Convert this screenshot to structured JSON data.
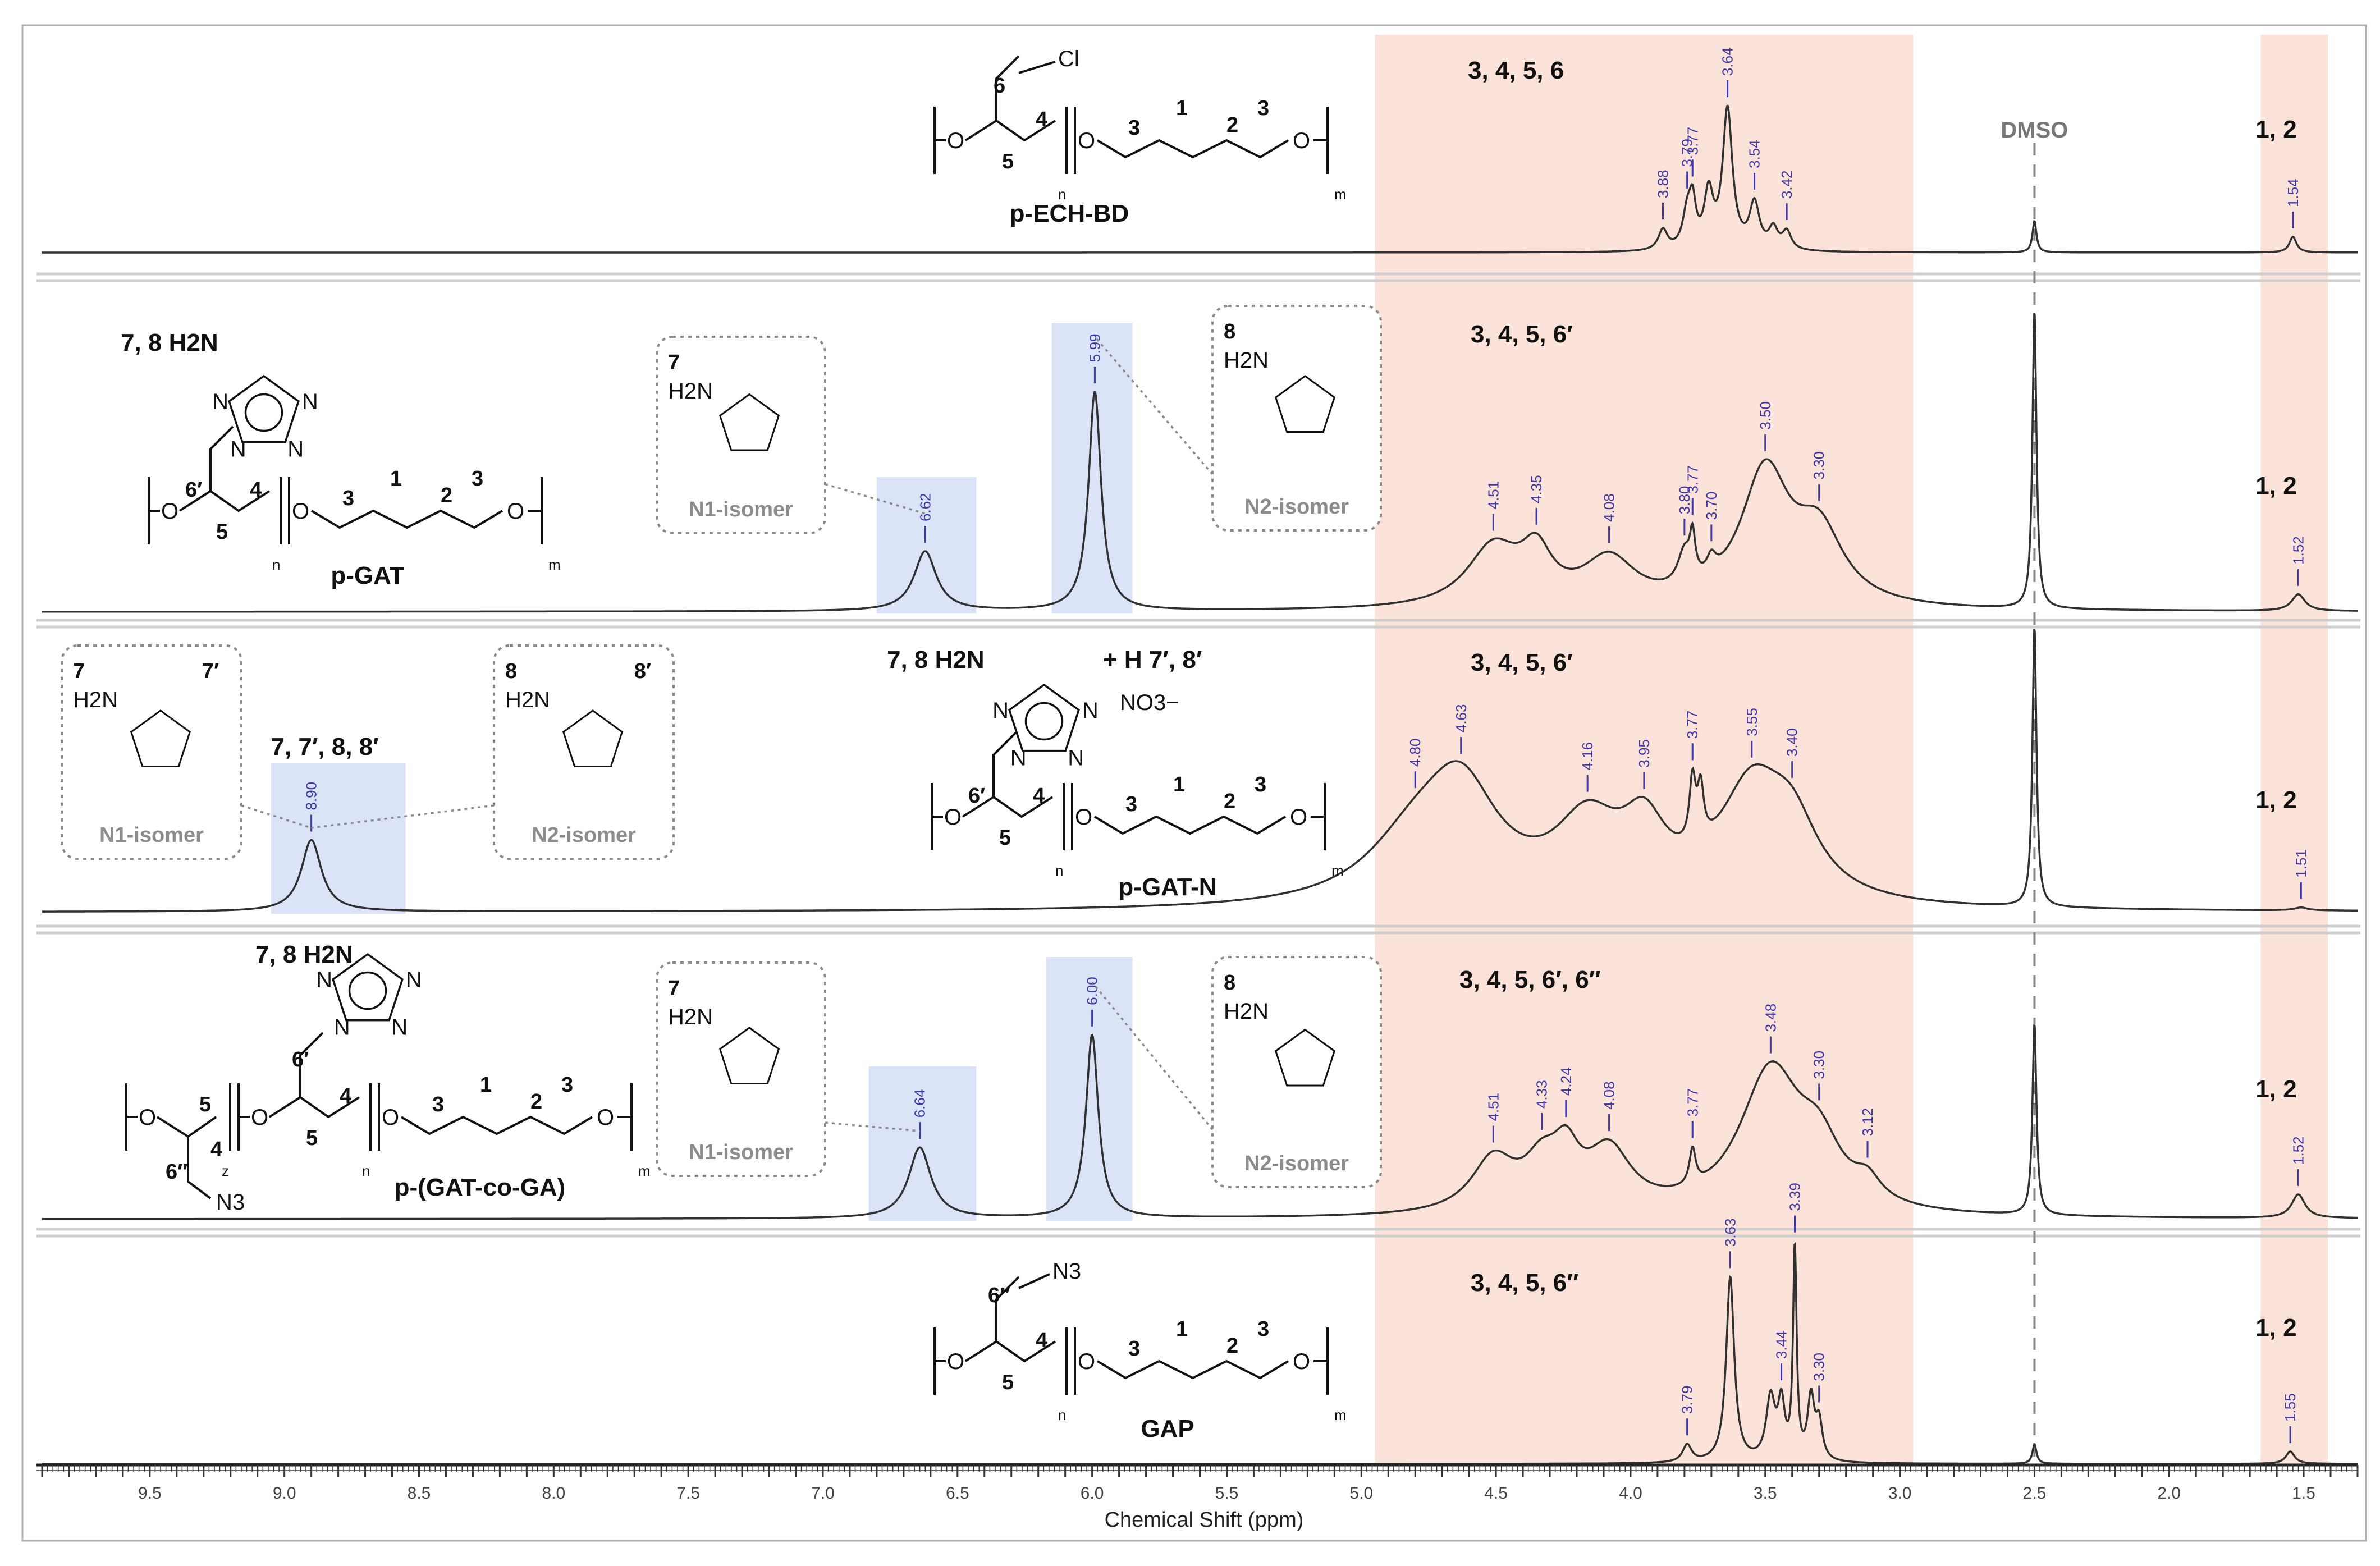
{
  "chart_data": {
    "type": "line",
    "title": "",
    "xlabel": "Chemical Shift (ppm)",
    "ylabel": "",
    "xlim": [
      9.9,
      1.3
    ],
    "reversed_x_axis": true,
    "x_ticks": [
      "9.5",
      "9.0",
      "8.5",
      "8.0",
      "7.5",
      "7.0",
      "6.5",
      "6.0",
      "5.5",
      "5.0",
      "4.5",
      "4.0",
      "3.5",
      "3.0",
      "2.5",
      "2.0",
      "1.5"
    ],
    "highlight_regions": [
      {
        "from": 4.95,
        "to": 2.95,
        "color": "#fbe3d9",
        "note": "aliphatic backbone region"
      },
      {
        "from": 1.66,
        "to": 1.41,
        "color": "#fbe3d9",
        "note": "protons 1, 2"
      }
    ],
    "solvent_marker": {
      "label": "DMSO",
      "ppm": 2.5
    },
    "series": [
      {
        "name": "p-ECH-BD",
        "baseline_level": 0.0,
        "peaks": [
          {
            "ppm": 3.88,
            "h": 0.09,
            "w": 0.02
          },
          {
            "ppm": 3.79,
            "h": 0.15,
            "w": 0.02
          },
          {
            "ppm": 3.77,
            "h": 0.18,
            "w": 0.015
          },
          {
            "ppm": 3.71,
            "h": 0.24,
            "w": 0.02
          },
          {
            "ppm": 3.64,
            "h": 0.62,
            "w": 0.022
          },
          {
            "ppm": 3.54,
            "h": 0.2,
            "w": 0.022
          },
          {
            "ppm": 3.47,
            "h": 0.09,
            "w": 0.02
          },
          {
            "ppm": 3.42,
            "h": 0.08,
            "w": 0.02
          },
          {
            "ppm": 2.5,
            "h": 0.14,
            "w": 0.009
          },
          {
            "ppm": 1.54,
            "h": 0.07,
            "w": 0.016
          }
        ],
        "labels": [
          "3.88",
          "3.79",
          "3.77",
          "3.64",
          "3.54",
          "3.42",
          "1.54"
        ],
        "region_labels": [
          "3, 4, 5, 6",
          "DMSO",
          "1, 2"
        ],
        "structure": {
          "name": "p-ECH-BD",
          "atoms": [
            "6",
            "4",
            "5",
            "3",
            "1",
            "2",
            "3",
            "n",
            "m",
            "Cl",
            "O",
            "O",
            "O"
          ]
        }
      },
      {
        "name": "p-GAT",
        "baseline_level": 0.0,
        "peaks": [
          {
            "ppm": 6.62,
            "h": 0.18,
            "w": 0.05
          },
          {
            "ppm": 5.99,
            "h": 0.66,
            "w": 0.028
          },
          {
            "ppm": 4.51,
            "h": 0.18,
            "w": 0.12
          },
          {
            "ppm": 4.35,
            "h": 0.14,
            "w": 0.07
          },
          {
            "ppm": 4.08,
            "h": 0.14,
            "w": 0.12
          },
          {
            "ppm": 3.8,
            "h": 0.1,
            "w": 0.03
          },
          {
            "ppm": 3.77,
            "h": 0.12,
            "w": 0.012
          },
          {
            "ppm": 3.7,
            "h": 0.05,
            "w": 0.02
          },
          {
            "ppm": 3.5,
            "h": 0.4,
            "w": 0.11
          },
          {
            "ppm": 3.3,
            "h": 0.21,
            "w": 0.11
          },
          {
            "ppm": 2.5,
            "h": 0.9,
            "w": 0.009
          },
          {
            "ppm": 1.52,
            "h": 0.05,
            "w": 0.03
          }
        ],
        "labels": [
          "6.62",
          "5.99",
          "4.51",
          "4.35",
          "4.08",
          "3.80",
          "3.77",
          "3.70",
          "3.50",
          "3.30",
          "1.52"
        ],
        "region_labels": [
          "3, 4, 5, 6′",
          "1, 2"
        ],
        "structure": {
          "name": "p-GAT",
          "prefix": "7, 8",
          "atoms": [
            "6′",
            "5",
            "4",
            "3",
            "1",
            "3",
            "n",
            "m",
            "O",
            "O",
            "O"
          ]
        },
        "isomer_insets": [
          {
            "number": "7",
            "label": "N1-isomer"
          },
          {
            "number": "8",
            "label": "N2-isomer"
          }
        ]
      },
      {
        "name": "p-GAT-N",
        "baseline_level": 0.0,
        "peaks": [
          {
            "ppm": 8.9,
            "h": 0.25,
            "w": 0.045
          },
          {
            "ppm": 4.8,
            "h": 0.2,
            "w": 0.22
          },
          {
            "ppm": 4.63,
            "h": 0.36,
            "w": 0.17
          },
          {
            "ppm": 4.16,
            "h": 0.26,
            "w": 0.15
          },
          {
            "ppm": 3.95,
            "h": 0.22,
            "w": 0.1
          },
          {
            "ppm": 3.77,
            "h": 0.22,
            "w": 0.014
          },
          {
            "ppm": 3.74,
            "h": 0.18,
            "w": 0.014
          },
          {
            "ppm": 3.55,
            "h": 0.38,
            "w": 0.15
          },
          {
            "ppm": 3.4,
            "h": 0.22,
            "w": 0.12
          },
          {
            "ppm": 2.5,
            "h": 0.98,
            "w": 0.009
          },
          {
            "ppm": 1.51,
            "h": 0.01,
            "w": 0.03
          }
        ],
        "labels": [
          "8.90",
          "4.80",
          "4.63",
          "4.16",
          "3.95",
          "3.77",
          "3.55",
          "3.40",
          "1.51"
        ],
        "region_labels": [
          "3, 4, 5, 6′",
          "1, 2"
        ],
        "structure": {
          "name": "p-GAT-N",
          "prefix": "7, 8",
          "atoms": [
            "7′, 8′",
            "NO3−",
            "H",
            "+",
            "6′",
            "5",
            "4",
            "3",
            "1",
            "2",
            "3",
            "n",
            "m"
          ]
        },
        "isomer_insets": [
          {
            "number": "7",
            "number2": "7′",
            "label": "N1-isomer"
          },
          {
            "number": "8",
            "number2": "8′",
            "label": "N2-isomer"
          }
        ],
        "peak_group_label": "7, 7′, 8, 8′"
      },
      {
        "name": "p-(GAT-co-GA)",
        "baseline_level": 0.0,
        "peaks": [
          {
            "ppm": 6.64,
            "h": 0.24,
            "w": 0.05
          },
          {
            "ppm": 6.0,
            "h": 0.62,
            "w": 0.028
          },
          {
            "ppm": 4.51,
            "h": 0.18,
            "w": 0.1
          },
          {
            "ppm": 4.33,
            "h": 0.14,
            "w": 0.08
          },
          {
            "ppm": 4.24,
            "h": 0.16,
            "w": 0.06
          },
          {
            "ppm": 4.08,
            "h": 0.2,
            "w": 0.1
          },
          {
            "ppm": 3.77,
            "h": 0.12,
            "w": 0.014
          },
          {
            "ppm": 3.48,
            "h": 0.48,
            "w": 0.14
          },
          {
            "ppm": 3.3,
            "h": 0.18,
            "w": 0.1
          },
          {
            "ppm": 3.12,
            "h": 0.07,
            "w": 0.06
          },
          {
            "ppm": 2.5,
            "h": 0.65,
            "w": 0.009
          },
          {
            "ppm": 1.52,
            "h": 0.08,
            "w": 0.03
          }
        ],
        "labels": [
          "6.64",
          "6.00",
          "4.51",
          "4.33",
          "4.24",
          "4.08",
          "3.77",
          "3.48",
          "3.30",
          "3.12",
          "1.52"
        ],
        "region_labels": [
          "3, 4, 5, 6′, 6″",
          "1, 2"
        ],
        "structure": {
          "name": "p-(GAT-co-GA)",
          "prefix": "7, 8",
          "atoms": [
            "6″",
            "N3",
            "6′",
            "5",
            "4",
            "5",
            "4",
            "3",
            "1",
            "2",
            "3",
            "z",
            "n",
            "m"
          ]
        },
        "isomer_insets": [
          {
            "number": "7",
            "label": "N1-isomer"
          },
          {
            "number": "8",
            "label": "N2-isomer"
          }
        ]
      },
      {
        "name": "GAP",
        "baseline_level": 0.0,
        "peaks": [
          {
            "ppm": 3.79,
            "h": 0.07,
            "w": 0.02
          },
          {
            "ppm": 3.63,
            "h": 0.75,
            "w": 0.018
          },
          {
            "ppm": 3.48,
            "h": 0.25,
            "w": 0.02
          },
          {
            "ppm": 3.44,
            "h": 0.22,
            "w": 0.015
          },
          {
            "ppm": 3.39,
            "h": 0.85,
            "w": 0.008
          },
          {
            "ppm": 3.33,
            "h": 0.25,
            "w": 0.015
          },
          {
            "ppm": 3.3,
            "h": 0.15,
            "w": 0.015
          },
          {
            "ppm": 2.5,
            "h": 0.08,
            "w": 0.009
          },
          {
            "ppm": 1.55,
            "h": 0.05,
            "w": 0.02
          }
        ],
        "labels": [
          "3.79",
          "3.63",
          "3.44",
          "3.39",
          "3.30",
          "1.55"
        ],
        "region_labels": [
          "3, 4, 5, 6″",
          "1, 2"
        ],
        "structure": {
          "name": "GAP",
          "atoms": [
            "6″",
            "N3",
            "4",
            "5",
            "3",
            "1",
            "2",
            "3",
            "n",
            "m"
          ]
        }
      }
    ]
  },
  "colors": {
    "highlight_region": "#fbe3d9",
    "isomer_peak_highlight": "#dbe3f7",
    "peak_label": "#3f38a6",
    "spectrum_line": "#303030",
    "divider": "#cfcfcf",
    "inset_border": "#8a8a8a",
    "inset_label": "#8c8c8c"
  },
  "text": {
    "h2n": "H2N",
    "n": "N",
    "plus": "+",
    "h": "H"
  }
}
